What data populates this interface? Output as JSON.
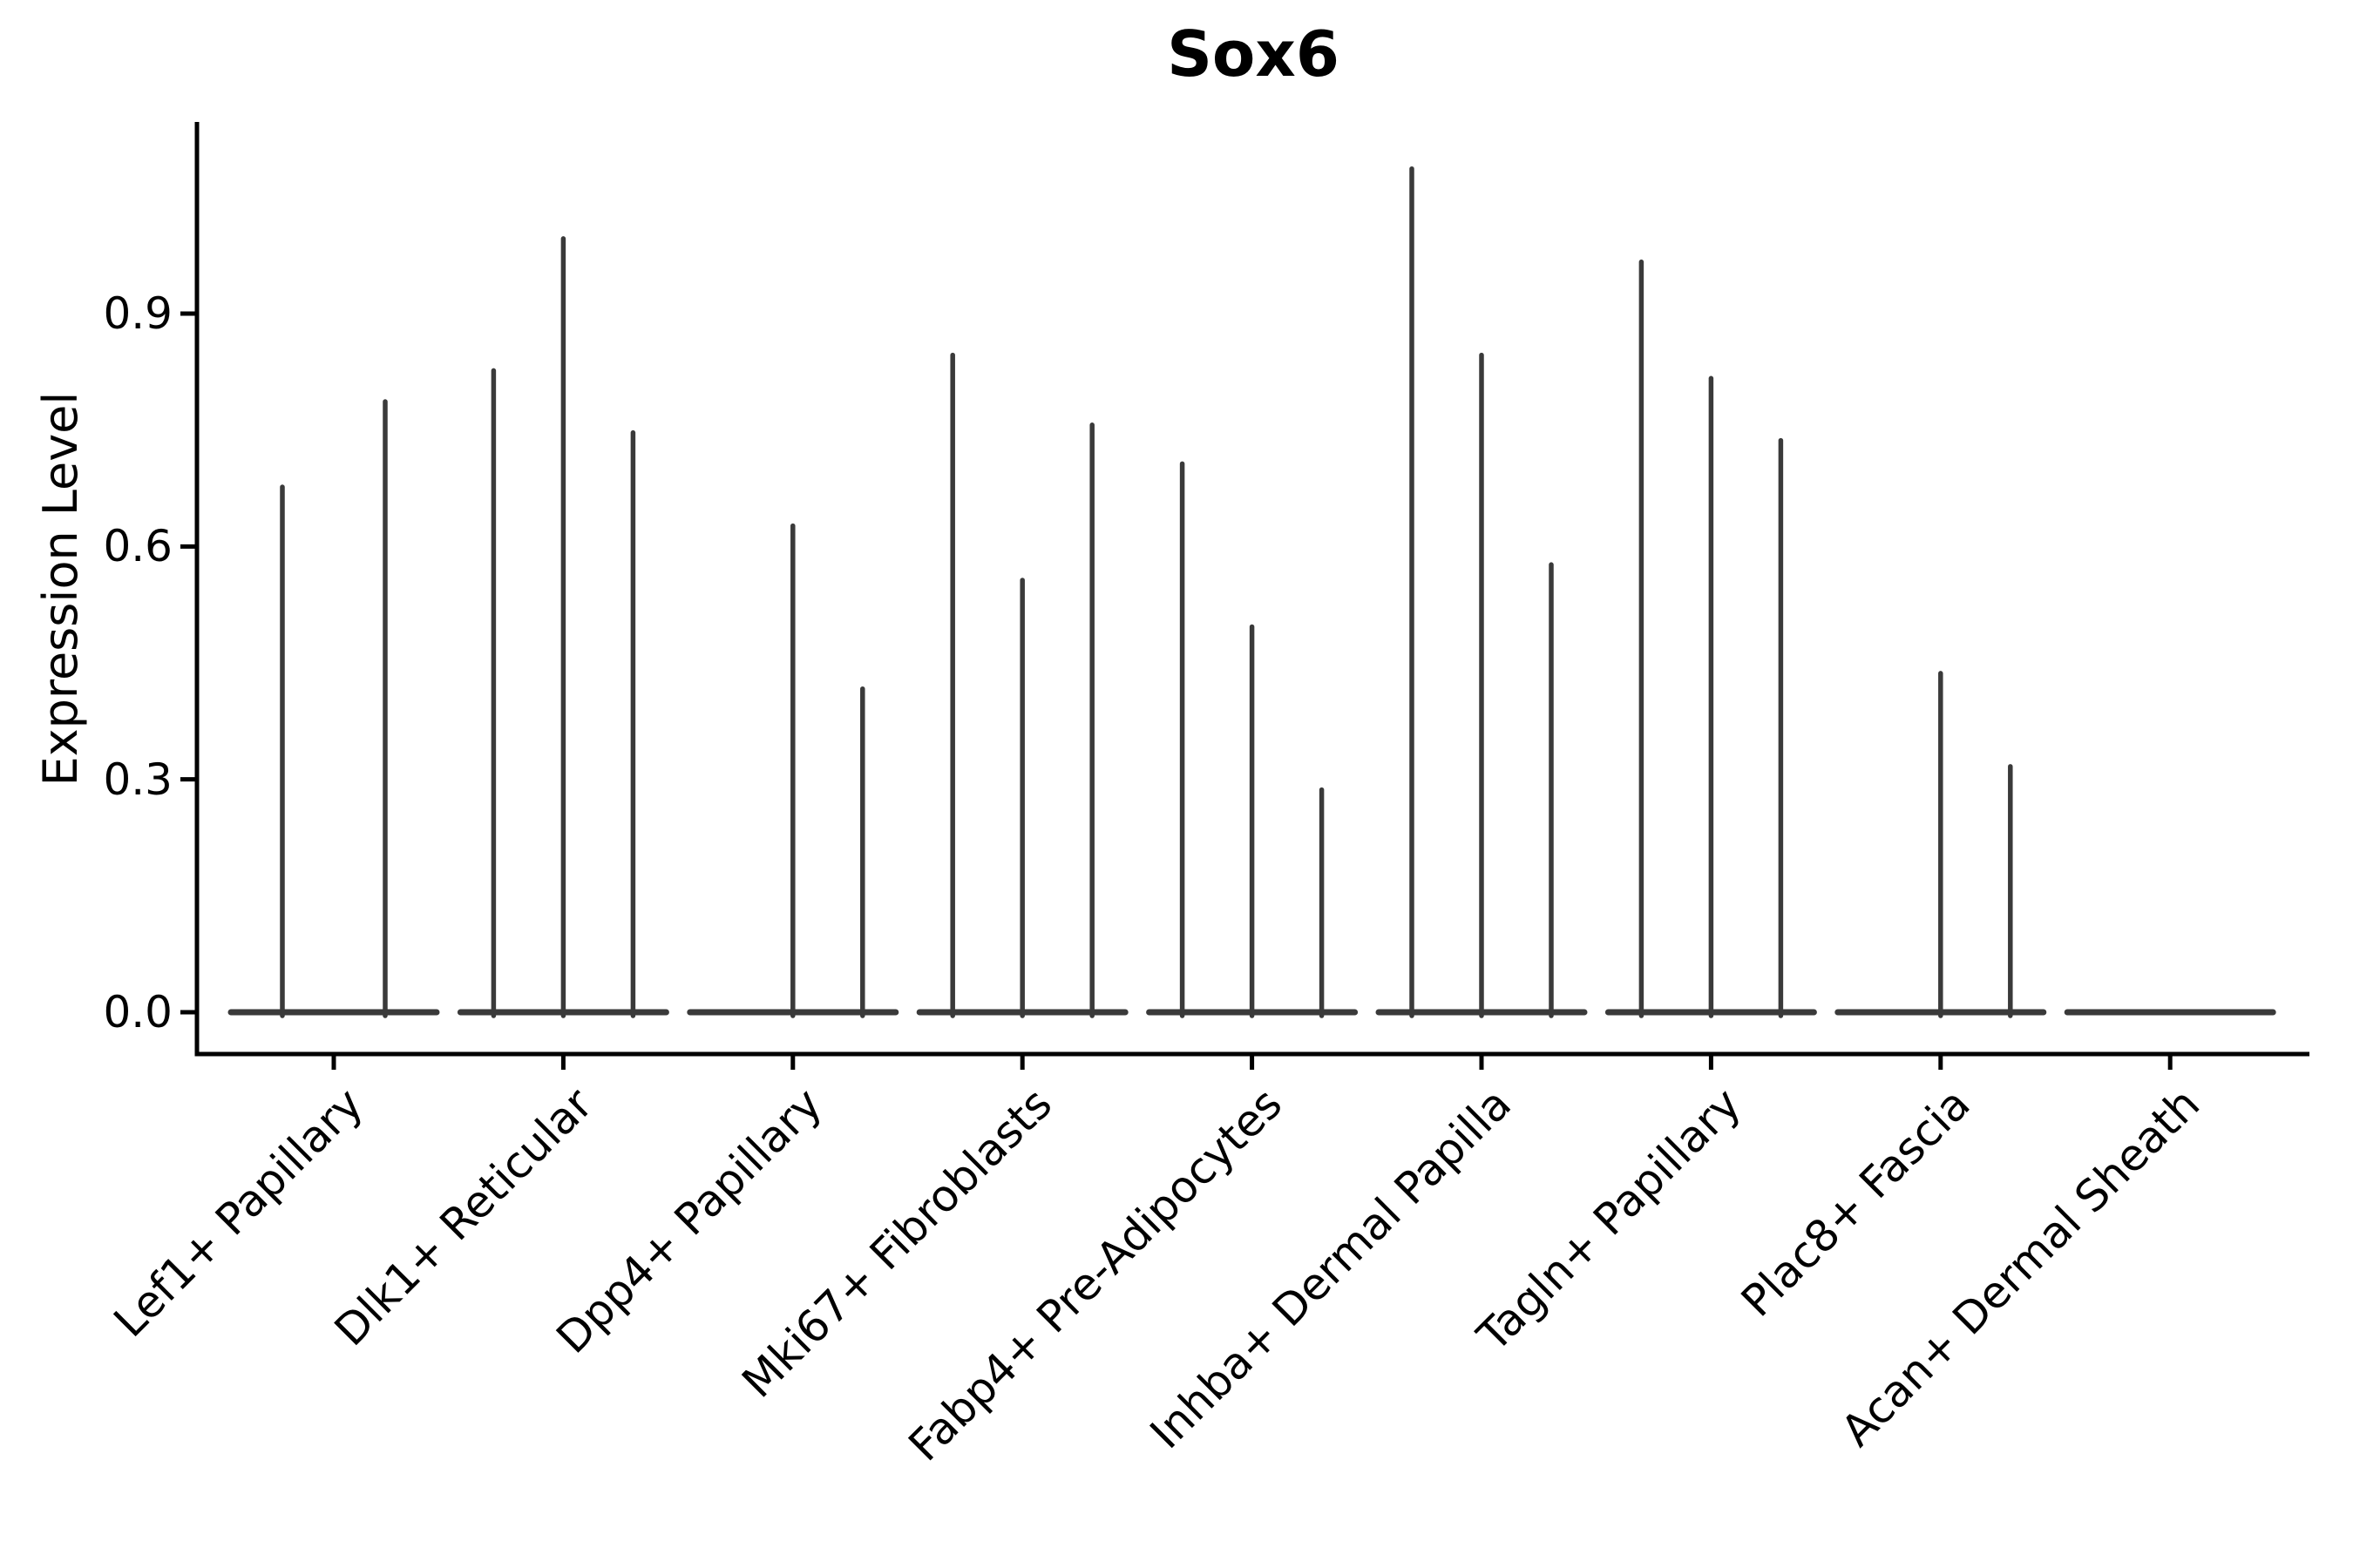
{
  "chart_data": {
    "type": "violin",
    "title": "Sox6",
    "xlabel": "",
    "ylabel": "Expression Level",
    "ylim": [
      0,
      1.15
    ],
    "yticks": [
      0.0,
      0.3,
      0.6,
      0.9
    ],
    "grid": false,
    "legend": "none",
    "violin_color": "#3a3a3a",
    "axis_color": "#000000",
    "categories": [
      "Lef1+ Papillary",
      "Dlk1+ Reticular",
      "Dpp4+ Papillary",
      "Mki67+ Fibroblasts",
      "Fabp4+ Pre-Adipocytes",
      "Inhba+ Dermal Papilla",
      "Tagln+ Papillary",
      "Plac8+ Fascia",
      "Acan+ Dermal Sheath"
    ],
    "groups": [
      {
        "category": "Lef1+ Papillary",
        "violins": [
          {
            "offset": -59,
            "max": 0.68
          },
          {
            "offset": 59,
            "max": 0.79
          }
        ]
      },
      {
        "category": "Dlk1+ Reticular",
        "violins": [
          {
            "offset": -80,
            "max": 0.83
          },
          {
            "offset": 0,
            "max": 1.0
          },
          {
            "offset": 80,
            "max": 0.75
          }
        ]
      },
      {
        "category": "Dpp4+ Papillary",
        "violins": [
          {
            "offset": 0,
            "max": 0.63
          },
          {
            "offset": 80,
            "max": 0.42
          }
        ]
      },
      {
        "category": "Mki67+ Fibroblasts",
        "violins": [
          {
            "offset": -80,
            "max": 0.85
          },
          {
            "offset": 0,
            "max": 0.56
          },
          {
            "offset": 80,
            "max": 0.76
          }
        ]
      },
      {
        "category": "Fabp4+ Pre-Adipocytes",
        "violins": [
          {
            "offset": -80,
            "max": 0.71
          },
          {
            "offset": 0,
            "max": 0.5
          },
          {
            "offset": 80,
            "max": 0.29
          }
        ]
      },
      {
        "category": "Inhba+ Dermal Papilla",
        "violins": [
          {
            "offset": -80,
            "max": 1.09
          },
          {
            "offset": 0,
            "max": 0.85
          },
          {
            "offset": 80,
            "max": 0.58
          }
        ]
      },
      {
        "category": "Tagln+ Papillary",
        "violins": [
          {
            "offset": -80,
            "max": 0.97
          },
          {
            "offset": 0,
            "max": 0.82
          },
          {
            "offset": 80,
            "max": 0.74
          }
        ]
      },
      {
        "category": "Plac8+ Fascia",
        "violins": [
          {
            "offset": 0,
            "max": 0.44
          },
          {
            "offset": 80,
            "max": 0.32
          }
        ]
      },
      {
        "category": "Acan+ Dermal Sheath",
        "violins": []
      }
    ],
    "zero_line_per_category": true
  }
}
